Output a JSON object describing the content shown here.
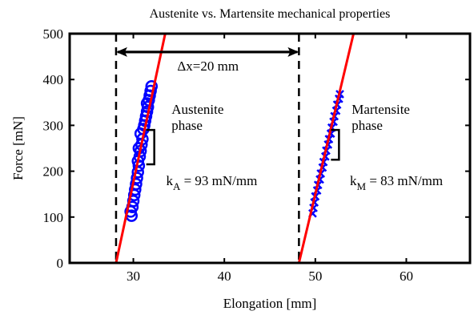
{
  "chart_data": {
    "type": "scatter",
    "title": "Austenite vs. Martensite mechanical properties",
    "xlabel": "Elongation [mm]",
    "ylabel": "Force [mN]",
    "xlim": [
      23,
      67
    ],
    "ylim": [
      0,
      500
    ],
    "xticks": [
      30,
      40,
      50,
      60
    ],
    "yticks": [
      0,
      100,
      200,
      300,
      400,
      500
    ],
    "grid": false,
    "series": [
      {
        "name": "Austenite phase",
        "marker": "circle",
        "color": "#0000ff",
        "points": [
          [
            29.8,
            103
          ],
          [
            29.7,
            112
          ],
          [
            29.9,
            122
          ],
          [
            30.0,
            135
          ],
          [
            30.1,
            148
          ],
          [
            30.2,
            160
          ],
          [
            30.3,
            172
          ],
          [
            30.4,
            185
          ],
          [
            30.5,
            198
          ],
          [
            30.6,
            212
          ],
          [
            30.5,
            222
          ],
          [
            30.7,
            232
          ],
          [
            30.8,
            244
          ],
          [
            30.6,
            250
          ],
          [
            30.9,
            258
          ],
          [
            31.0,
            270
          ],
          [
            30.8,
            282
          ],
          [
            31.1,
            292
          ],
          [
            31.2,
            300
          ],
          [
            31.3,
            310
          ],
          [
            31.4,
            320
          ],
          [
            31.5,
            330
          ],
          [
            31.6,
            340
          ],
          [
            31.5,
            348
          ],
          [
            31.7,
            355
          ],
          [
            31.8,
            365
          ],
          [
            31.9,
            375
          ],
          [
            32.0,
            385
          ]
        ]
      },
      {
        "name": "Martensite phase",
        "marker": "x",
        "color": "#0000ff",
        "points": [
          [
            49.7,
            108
          ],
          [
            49.8,
            120
          ],
          [
            49.9,
            132
          ],
          [
            50.0,
            145
          ],
          [
            50.2,
            158
          ],
          [
            50.3,
            170
          ],
          [
            50.5,
            182
          ],
          [
            50.6,
            195
          ],
          [
            50.8,
            208
          ],
          [
            50.9,
            220
          ],
          [
            51.1,
            232
          ],
          [
            51.2,
            245
          ],
          [
            51.4,
            258
          ],
          [
            51.5,
            270
          ],
          [
            51.7,
            282
          ],
          [
            51.8,
            295
          ],
          [
            52.0,
            308
          ],
          [
            52.1,
            320
          ],
          [
            52.3,
            332
          ],
          [
            52.4,
            345
          ],
          [
            52.6,
            358
          ],
          [
            52.7,
            368
          ]
        ]
      }
    ],
    "fit_lines": [
      {
        "color": "#ff0000",
        "points": [
          [
            28.1,
            0
          ],
          [
            33.5,
            500
          ]
        ]
      },
      {
        "color": "#ff0000",
        "points": [
          [
            48.2,
            0
          ],
          [
            54.2,
            500
          ]
        ]
      }
    ],
    "vlines": [
      28.1,
      48.2
    ],
    "arrow": {
      "from": [
        28.1,
        460
      ],
      "to": [
        48.2,
        460
      ],
      "label": "Δx=20 mm",
      "label_at": [
        38.2,
        420
      ]
    },
    "annotations": [
      {
        "id": "austenite",
        "lines": [
          "Austenite",
          "phase"
        ],
        "at": [
          34.2,
          325
        ]
      },
      {
        "id": "martensite",
        "lines": [
          "Martensite",
          "phase"
        ],
        "at": [
          54.0,
          325
        ]
      },
      {
        "id": "ka",
        "main": "k",
        "sub": "A",
        "rest": " = 93 mN/mm",
        "at": [
          33.6,
          170
        ]
      },
      {
        "id": "km",
        "main": "k",
        "sub": "M",
        "rest": " = 83 mN/mm",
        "at": [
          53.8,
          170
        ]
      }
    ],
    "slope_brackets": [
      {
        "x": 32.3,
        "y1": 290,
        "y2": 215
      },
      {
        "x": 52.6,
        "y1": 290,
        "y2": 225
      }
    ]
  }
}
